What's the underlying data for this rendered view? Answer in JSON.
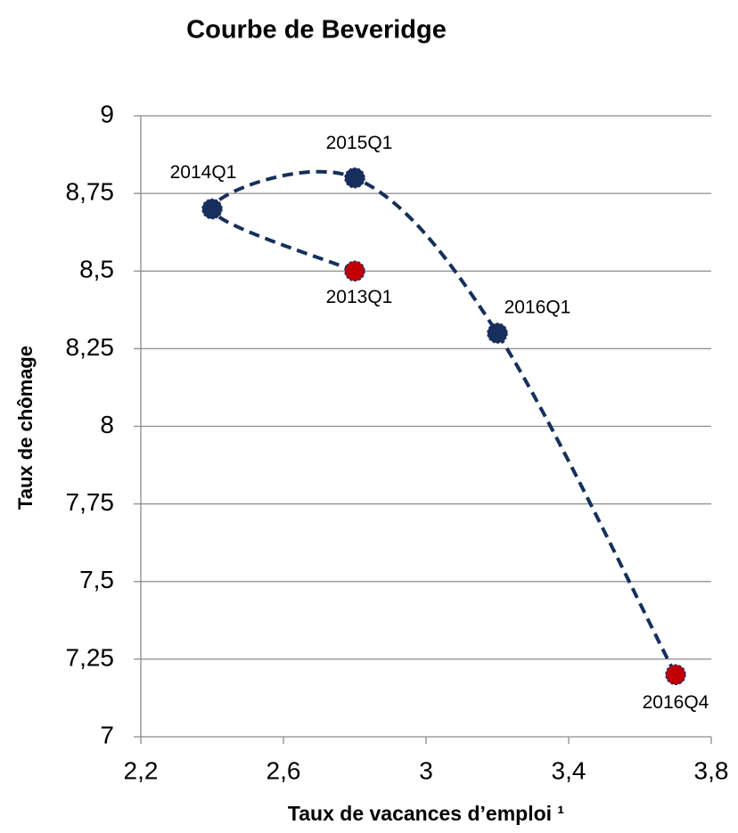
{
  "chart_data": {
    "type": "scatter",
    "title": "Courbe de Beveridge",
    "x_label": "Taux de vacances d’emploi ¹",
    "y_label": "Taux de chômage",
    "connect": "smooth-dashed",
    "line_color": "#15305c",
    "labels": [
      "2013Q1",
      "2014Q1",
      "2015Q1",
      "2016Q1",
      "2016Q4"
    ],
    "x": [
      2.8,
      2.4,
      2.8,
      3.2,
      3.7
    ],
    "values": [
      8.5,
      8.7,
      8.8,
      8.3,
      7.2
    ],
    "colors": [
      "#c00000",
      "#15305c",
      "#15305c",
      "#15305c",
      "#c00000"
    ],
    "xlim": [
      2.2,
      3.8
    ],
    "xticks": [
      {
        "value": 2.2,
        "label": "2,2"
      },
      {
        "value": 2.6,
        "label": "2,6"
      },
      3,
      {
        "value": 3.4,
        "label": "3,4"
      },
      {
        "value": 3.8,
        "label": "3,8"
      }
    ],
    "ylim": [
      7,
      9
    ],
    "yticks": [
      7,
      {
        "value": 7.25,
        "label": "7,25"
      },
      {
        "value": 7.5,
        "label": "7,5"
      },
      {
        "value": 7.75,
        "label": "7,75"
      },
      8,
      {
        "value": 8.25,
        "label": "8,25"
      },
      {
        "value": 8.5,
        "label": "8,5"
      },
      {
        "value": 8.75,
        "label": "8,75"
      },
      9
    ],
    "grid": true
  }
}
